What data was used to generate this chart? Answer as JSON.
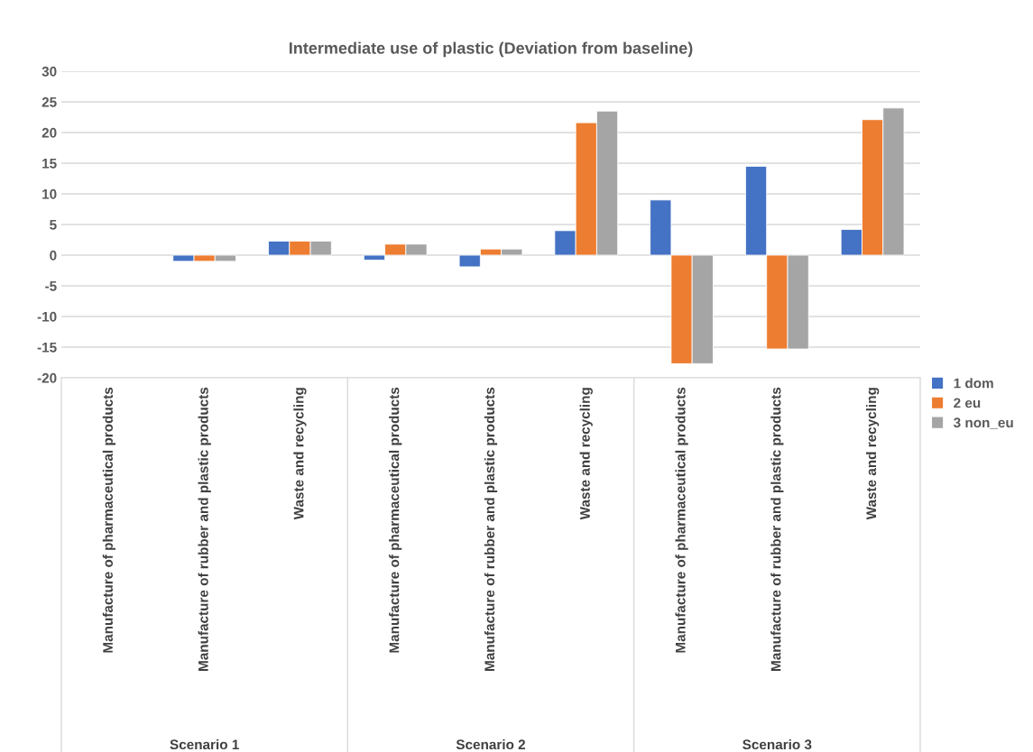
{
  "chart_data": {
    "type": "bar",
    "title": "Intermediate use of plastic (Deviation from baseline)",
    "categories": [
      "Manufacture of pharmaceutical products",
      "Manufacture of rubber and plastic products",
      "Waste and recycling",
      "Manufacture of pharmaceutical products",
      "Manufacture of rubber and plastic products",
      "Waste and recycling",
      "Manufacture of pharmaceutical products",
      "Manufacture of rubber and plastic products",
      "Waste and recycling"
    ],
    "series": [
      {
        "name": "1 dom",
        "color": "#4472c4",
        "values": [
          null,
          -1.0,
          2.3,
          -0.8,
          -1.9,
          4.0,
          9.0,
          14.5,
          4.2
        ]
      },
      {
        "name": "2 eu",
        "color": "#ed7d31",
        "values": [
          null,
          -1.0,
          2.3,
          1.8,
          1.0,
          21.6,
          -17.7,
          -15.3,
          22.1
        ]
      },
      {
        "name": "3 non_eu",
        "color": "#a5a5a5",
        "values": [
          null,
          -1.0,
          2.3,
          1.8,
          1.0,
          23.5,
          -17.7,
          -15.3,
          24.0
        ]
      }
    ],
    "annotations": [
      "Scenario 1",
      "Scenario 2",
      "Scenario 3"
    ],
    "ylim": [
      -20,
      30
    ],
    "yticks": [
      -20,
      -15,
      -10,
      -5,
      0,
      5,
      10,
      15,
      20,
      25,
      30
    ],
    "grid": "y",
    "legend": "right"
  }
}
